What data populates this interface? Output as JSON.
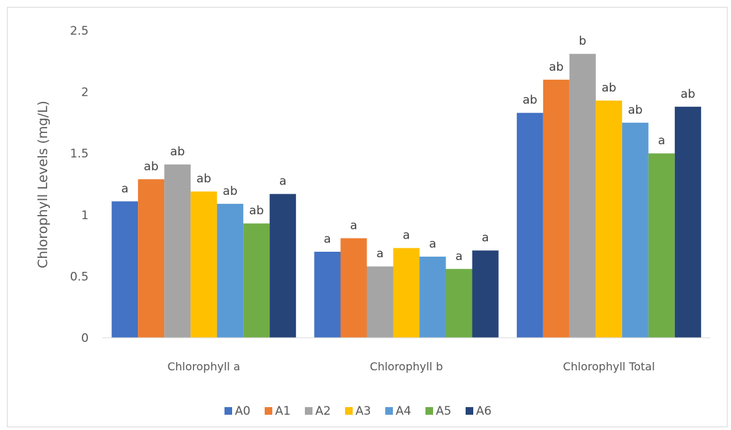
{
  "chart_data": {
    "type": "bar",
    "title": "",
    "xlabel": "",
    "ylabel": "Chlorophyll Levels (mg/L)",
    "ylim": [
      0,
      2.5
    ],
    "yticks": [
      "0",
      "0.5",
      "1",
      "1.5",
      "2",
      "2.5"
    ],
    "grid": false,
    "legend_position": "bottom",
    "categories": [
      "Chlorophyll a",
      "Chlorophyll b",
      "Chlorophyll Total"
    ],
    "series": [
      {
        "name": "A0",
        "color": "#4472C4",
        "values": [
          1.11,
          0.7,
          1.83
        ],
        "labels": [
          "a",
          "a",
          "ab"
        ]
      },
      {
        "name": "A1",
        "color": "#ED7D31",
        "values": [
          1.29,
          0.81,
          2.1
        ],
        "labels": [
          "ab",
          "a",
          "ab"
        ]
      },
      {
        "name": "A2",
        "color": "#A5A5A5",
        "values": [
          1.41,
          0.58,
          2.31
        ],
        "labels": [
          "ab",
          "a",
          "b"
        ]
      },
      {
        "name": "A3",
        "color": "#FFC000",
        "values": [
          1.19,
          0.73,
          1.93
        ],
        "labels": [
          "ab",
          "a",
          "ab"
        ]
      },
      {
        "name": "A4",
        "color": "#5B9BD5",
        "values": [
          1.09,
          0.66,
          1.75
        ],
        "labels": [
          "ab",
          "a",
          "ab"
        ]
      },
      {
        "name": "A5",
        "color": "#70AD47",
        "values": [
          0.93,
          0.56,
          1.5
        ],
        "labels": [
          "ab",
          "a",
          "a"
        ]
      },
      {
        "name": "A6",
        "color": "#264478",
        "values": [
          1.17,
          0.71,
          1.88
        ],
        "labels": [
          "a",
          "a",
          "ab"
        ]
      }
    ]
  }
}
